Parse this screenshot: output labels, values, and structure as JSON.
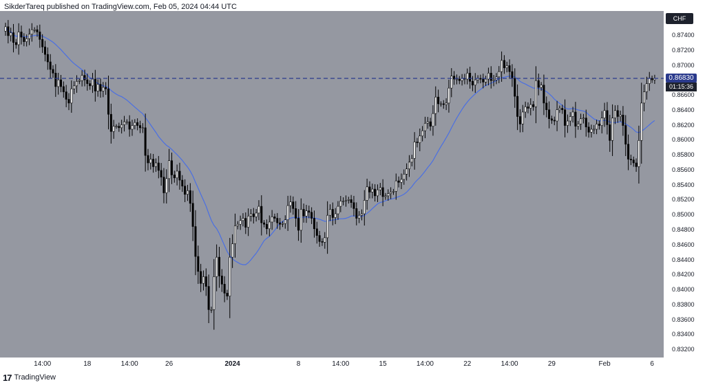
{
  "header": {
    "text": "SikderTareq published on TradingView.com, Feb 05, 2024 04:44 UTC"
  },
  "footer": {
    "logo_mark": "17",
    "brand": "TradingView"
  },
  "price_badge": {
    "currency": "CHF",
    "last_price": "0.86830",
    "countdown": "01:15:36"
  },
  "colors": {
    "plot_background": "#9598a1",
    "candle_up": "#ffffff",
    "candle_down": "#000000",
    "ma_line": "#4a6fe3",
    "price_line": "#2a3a8c"
  },
  "chart_data": {
    "type": "candlestick",
    "instrument_currency": "CHF",
    "ylim": [
      0.831,
      0.8773
    ],
    "y_ticks": [
      "0.87400",
      "0.87200",
      "0.87000",
      "0.86600",
      "0.86400",
      "0.86200",
      "0.86000",
      "0.85800",
      "0.85600",
      "0.85400",
      "0.85200",
      "0.85000",
      "0.84800",
      "0.84600",
      "0.84400",
      "0.84200",
      "0.84000",
      "0.83800",
      "0.83600",
      "0.83400",
      "0.83200"
    ],
    "x_ticks": [
      {
        "label": "14:00",
        "bar": 14
      },
      {
        "label": "18",
        "bar": 31
      },
      {
        "label": "14:00",
        "bar": 47
      },
      {
        "label": "26",
        "bar": 62
      },
      {
        "label": "2024",
        "bar": 86,
        "bold": true
      },
      {
        "label": "8",
        "bar": 111
      },
      {
        "label": "14:00",
        "bar": 127
      },
      {
        "label": "15",
        "bar": 143
      },
      {
        "label": "14:00",
        "bar": 159
      },
      {
        "label": "22",
        "bar": 175
      },
      {
        "label": "14:00",
        "bar": 191
      },
      {
        "label": "29",
        "bar": 207
      },
      {
        "label": "Feb",
        "bar": 227
      },
      {
        "label": "6",
        "bar": 245
      }
    ],
    "last_price": 0.8683,
    "close": [
      0.8752,
      0.874,
      0.8744,
      0.8731,
      0.8728,
      0.8745,
      0.8738,
      0.8732,
      0.8736,
      0.8742,
      0.8748,
      0.8748,
      0.8745,
      0.8735,
      0.8725,
      0.8715,
      0.8705,
      0.8695,
      0.869,
      0.8672,
      0.8681,
      0.8672,
      0.8665,
      0.8655,
      0.865,
      0.8669,
      0.8673,
      0.8679,
      0.868,
      0.8687,
      0.8681,
      0.8676,
      0.8673,
      0.8682,
      0.8666,
      0.8675,
      0.8666,
      0.8671,
      0.8669,
      0.8635,
      0.8612,
      0.8619,
      0.8619,
      0.8617,
      0.8621,
      0.8625,
      0.8625,
      0.8615,
      0.862,
      0.8624,
      0.862,
      0.8617,
      0.8617,
      0.858,
      0.857,
      0.8575,
      0.8565,
      0.857,
      0.856,
      0.8551,
      0.853,
      0.8549,
      0.8573,
      0.8554,
      0.855,
      0.8559,
      0.8547,
      0.8539,
      0.8528,
      0.8533,
      0.8516,
      0.8485,
      0.8445,
      0.8425,
      0.8409,
      0.8418,
      0.8405,
      0.8374,
      0.8374,
      0.8418,
      0.8444,
      0.8419,
      0.8408,
      0.8396,
      0.8392,
      0.8444,
      0.8462,
      0.8486,
      0.8488,
      0.8493,
      0.8496,
      0.8484,
      0.8499,
      0.8502,
      0.8498,
      0.8503,
      0.8512,
      0.849,
      0.8488,
      0.8482,
      0.8491,
      0.8498,
      0.8496,
      0.849,
      0.8488,
      0.8489,
      0.8494,
      0.8513,
      0.8518,
      0.8509,
      0.8496,
      0.848,
      0.8508,
      0.8499,
      0.8506,
      0.8504,
      0.8496,
      0.8482,
      0.8473,
      0.8465,
      0.8464,
      0.847,
      0.85,
      0.8508,
      0.8497,
      0.8502,
      0.8512,
      0.8519,
      0.8519,
      0.852,
      0.8521,
      0.8517,
      0.8509,
      0.8496,
      0.85,
      0.8502,
      0.852,
      0.8538,
      0.8531,
      0.8535,
      0.8526,
      0.8534,
      0.8537,
      0.8525,
      0.8526,
      0.8529,
      0.8531,
      0.8532,
      0.8546,
      0.8544,
      0.8548,
      0.8555,
      0.8562,
      0.8571,
      0.8576,
      0.8598,
      0.8597,
      0.8606,
      0.8613,
      0.8623,
      0.8625,
      0.8619,
      0.8636,
      0.8658,
      0.8649,
      0.8649,
      0.8648,
      0.865,
      0.867,
      0.8686,
      0.8682,
      0.8682,
      0.868,
      0.8683,
      0.8682,
      0.869,
      0.8679,
      0.8674,
      0.8681,
      0.8683,
      0.8682,
      0.8678,
      0.8682,
      0.869,
      0.868,
      0.8681,
      0.8685,
      0.8692,
      0.8707,
      0.8697,
      0.87,
      0.8692,
      0.8683,
      0.8659,
      0.8632,
      0.8622,
      0.8638,
      0.8645,
      0.8643,
      0.8648,
      0.8645,
      0.868,
      0.8671,
      0.8674,
      0.865,
      0.8641,
      0.8629,
      0.8627,
      0.8626,
      0.8641,
      0.8643,
      0.8641,
      0.862,
      0.8626,
      0.8632,
      0.8638,
      0.8619,
      0.8622,
      0.8629,
      0.863,
      0.8618,
      0.8611,
      0.8615,
      0.8615,
      0.8622,
      0.862,
      0.863,
      0.864,
      0.8621,
      0.86,
      0.863,
      0.864,
      0.8632,
      0.8634,
      0.862,
      0.8595,
      0.8575,
      0.8574,
      0.857,
      0.8565,
      0.86,
      0.865,
      0.8665,
      0.8676,
      0.8683,
      0.8681,
      0.8683
    ]
  }
}
